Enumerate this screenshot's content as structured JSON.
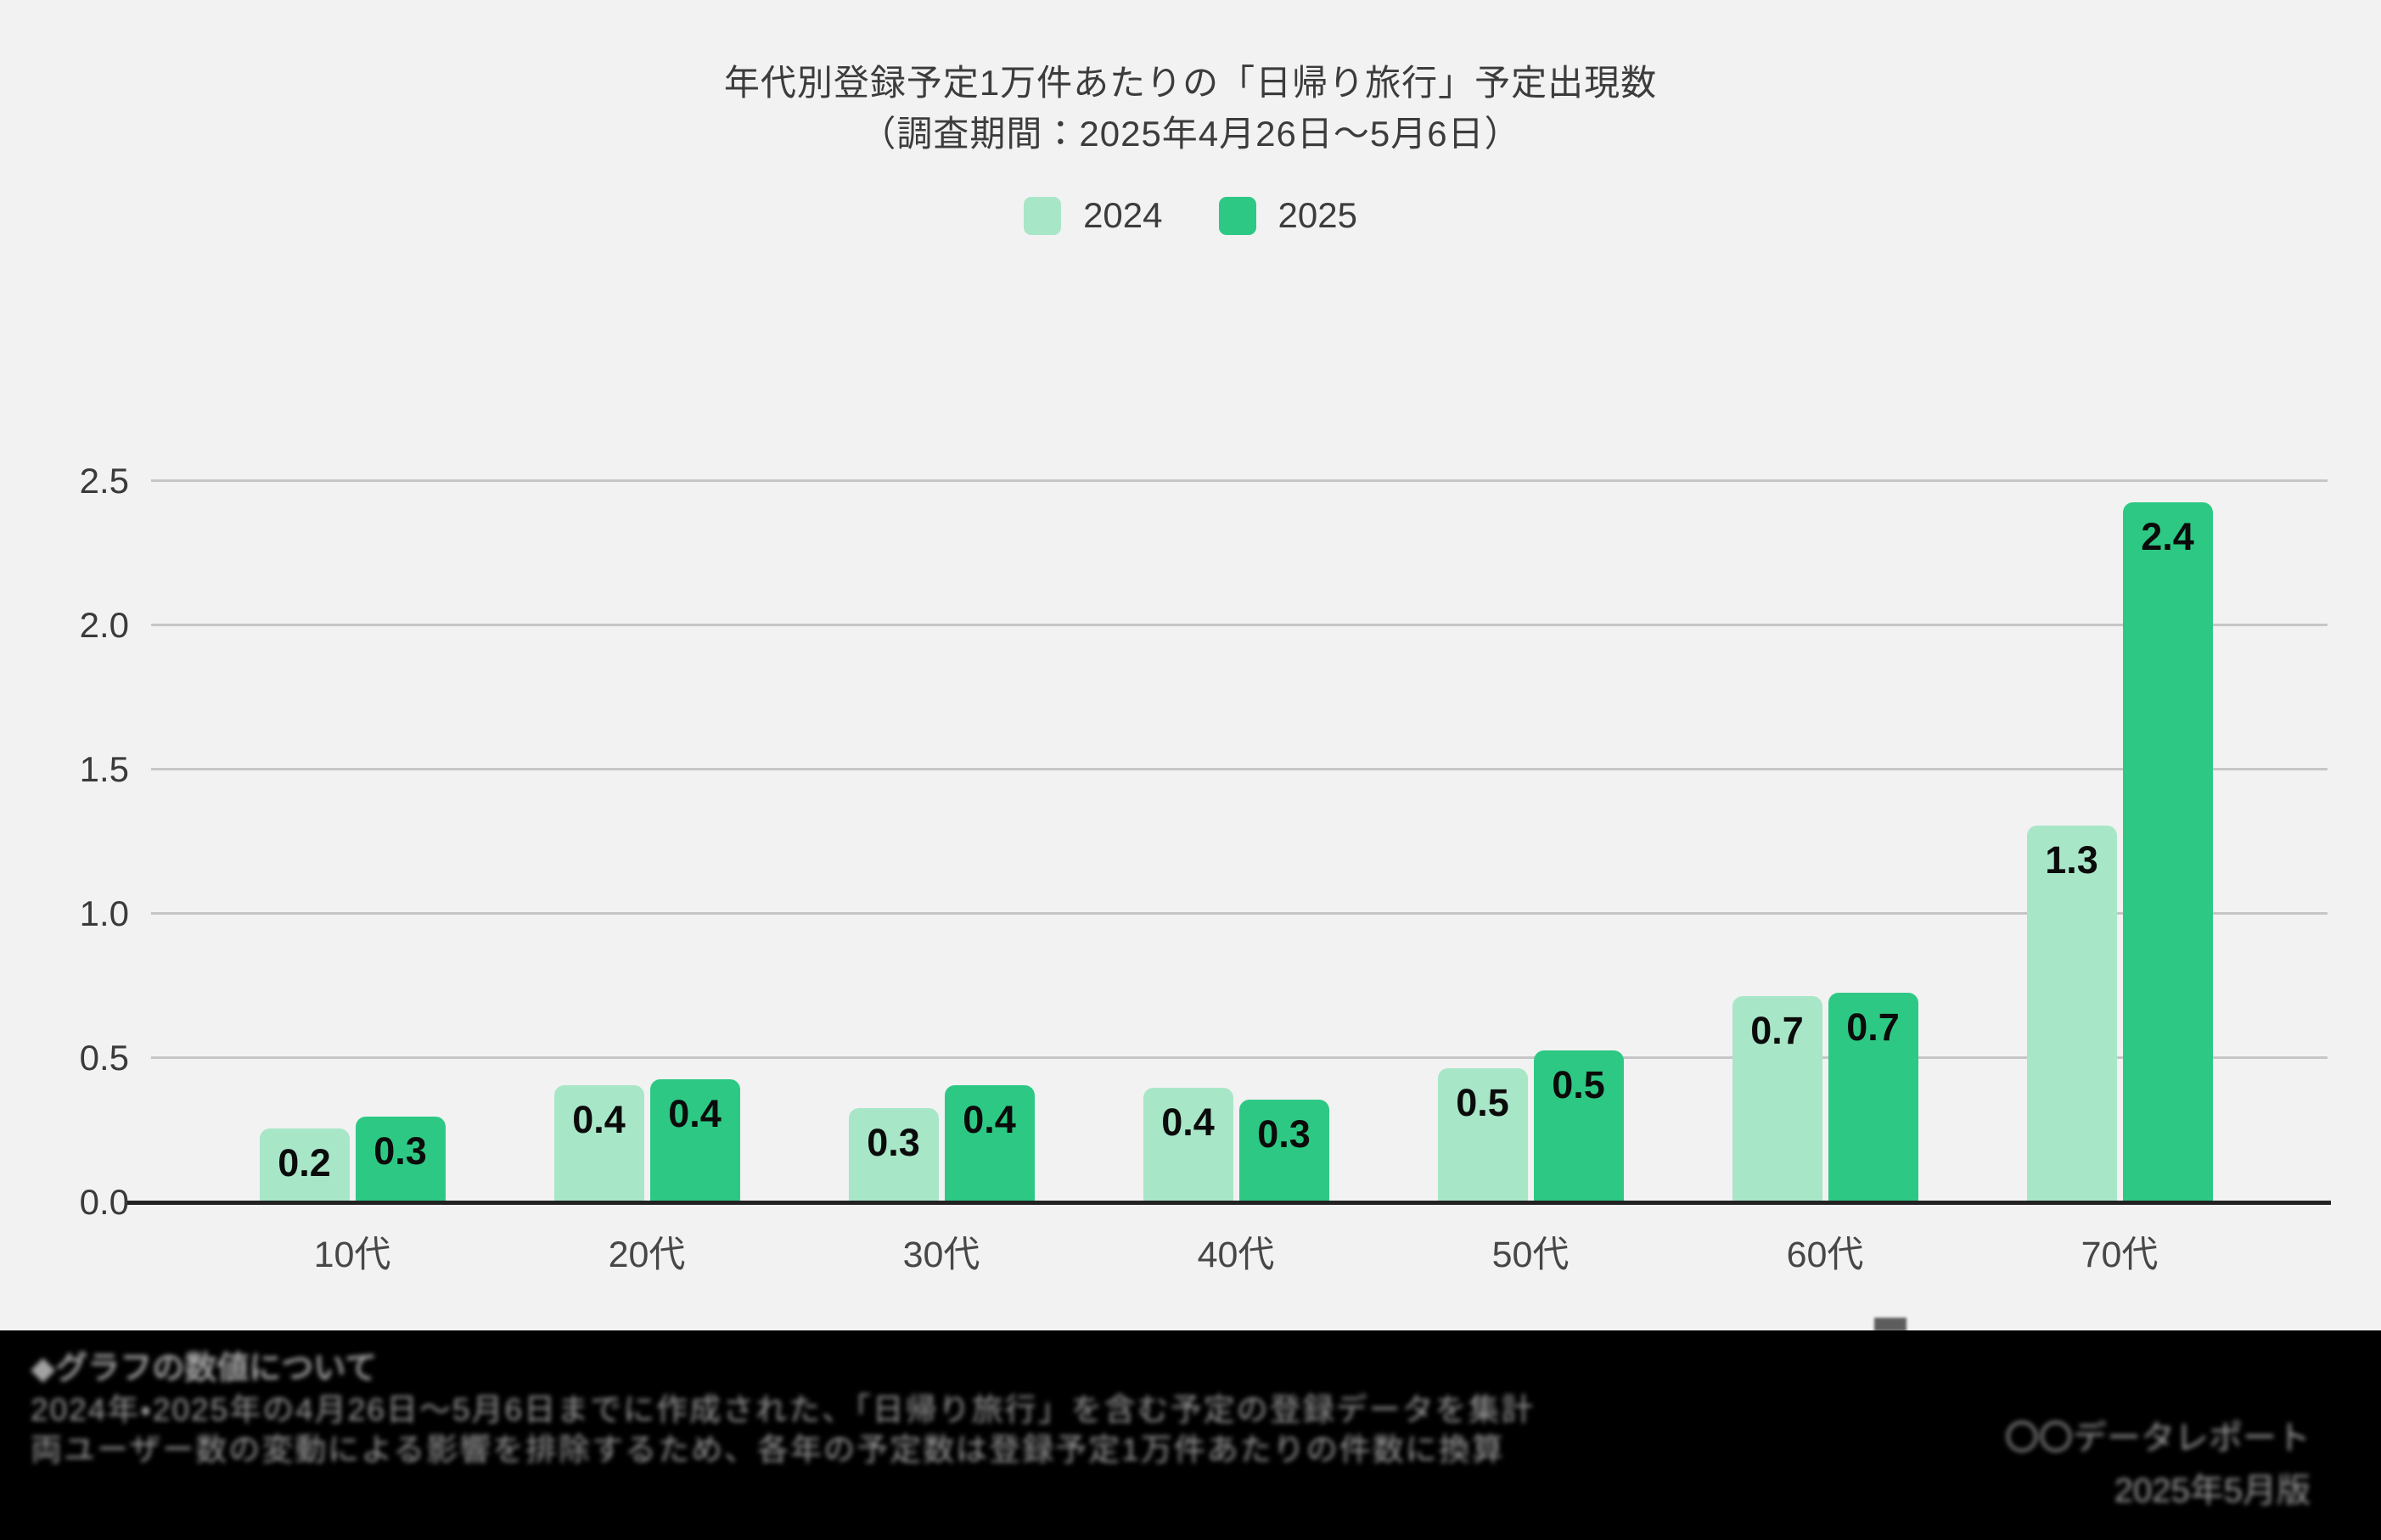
{
  "page": {
    "background": "#F2F2F2",
    "footer_background": "#000000"
  },
  "title": {
    "line1": "年代別登録予定1万件あたりの「日帰り旅行」予定出現数",
    "line2": "（調査期間：2025年4月26日〜5月6日）"
  },
  "legend": {
    "items": [
      {
        "label": "2024",
        "color": "#A8E6C8"
      },
      {
        "label": "2025",
        "color": "#2DC984"
      }
    ]
  },
  "chart_data": {
    "type": "bar",
    "title": "年代別登録予定1万件あたりの「日帰り旅行」予定出現数（調査期間：2025年4月26日〜5月6日）",
    "categories": [
      "10代",
      "20代",
      "30代",
      "40代",
      "50代",
      "60代",
      "70代"
    ],
    "series": [
      {
        "name": "2024",
        "color": "#A8E6C8",
        "values": [
          0.2,
          0.4,
          0.3,
          0.4,
          0.5,
          0.7,
          1.3
        ],
        "plotted_heights": [
          0.25,
          0.4,
          0.32,
          0.39,
          0.46,
          0.71,
          1.3
        ]
      },
      {
        "name": "2025",
        "color": "#2DC984",
        "values": [
          0.3,
          0.4,
          0.4,
          0.3,
          0.5,
          0.7,
          2.4
        ],
        "plotted_heights": [
          0.29,
          0.42,
          0.4,
          0.35,
          0.52,
          0.72,
          2.42
        ]
      }
    ],
    "xlabel": "",
    "ylabel": "",
    "ylim": [
      0,
      2.5
    ],
    "yticks": [
      "0.0",
      "0.5",
      "1.0",
      "1.5",
      "2.0",
      "2.5"
    ],
    "grid": true,
    "legend_position": "top",
    "value_labels": "inside-top"
  },
  "colors": {
    "grid": "#C6C6C6",
    "axis": "#222222",
    "tick_label": "#3A3A3A",
    "bar_label": "#0B0B0B"
  },
  "footer": {
    "obfuscated": true,
    "left_lines": {
      "heading": "◆グラフの数値について",
      "line2": "2024年・2025年の4月26日〜5月6日までに作成された、「日帰り旅行」を含む予定の登録データを集計",
      "line3": "両ユーザー数の変動による影響を排除するため、各年の予定数は登録予定1万件あたりの件数に換算"
    },
    "right_lines": {
      "line1": "〇〇データレポート",
      "line2": "2025年5月版"
    }
  }
}
